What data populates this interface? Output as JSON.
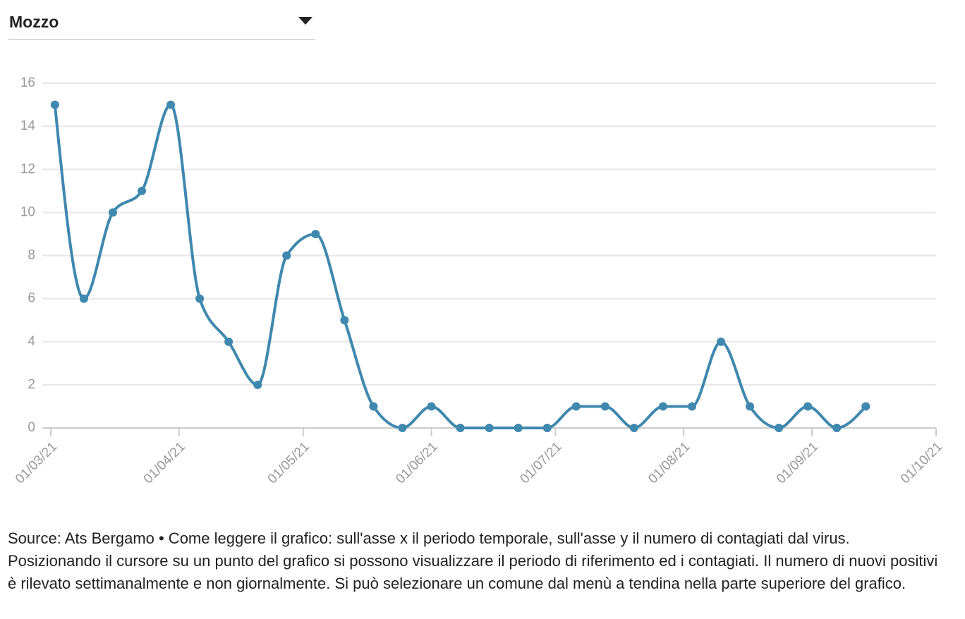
{
  "dropdown": {
    "selected": "Mozzo"
  },
  "chart_data": {
    "type": "line",
    "x": [
      "2021-03-02",
      "2021-03-09",
      "2021-03-16",
      "2021-03-23",
      "2021-03-30",
      "2021-04-06",
      "2021-04-13",
      "2021-04-20",
      "2021-04-27",
      "2021-05-04",
      "2021-05-11",
      "2021-05-18",
      "2021-05-25",
      "2021-06-01",
      "2021-06-08",
      "2021-06-15",
      "2021-06-22",
      "2021-06-29",
      "2021-07-06",
      "2021-07-13",
      "2021-07-20",
      "2021-07-27",
      "2021-08-03",
      "2021-08-10",
      "2021-08-17",
      "2021-08-24",
      "2021-08-31",
      "2021-09-07",
      "2021-09-14"
    ],
    "series": [
      {
        "name": "Mozzo",
        "color": "#3f88ae",
        "values": [
          15,
          6,
          10,
          11,
          15,
          6,
          4,
          2,
          8,
          9,
          5,
          1,
          0,
          1,
          0,
          0,
          0,
          0,
          1,
          1,
          0,
          1,
          1,
          4,
          1,
          0,
          1,
          0,
          1
        ]
      }
    ],
    "xlim": [
      "2021-03-01",
      "2021-10-01"
    ],
    "xticks": [
      {
        "value": "2021-03-01",
        "label": "01/03/21"
      },
      {
        "value": "2021-04-01",
        "label": "01/04/21"
      },
      {
        "value": "2021-05-01",
        "label": "01/05/21"
      },
      {
        "value": "2021-06-01",
        "label": "01/06/21"
      },
      {
        "value": "2021-07-01",
        "label": "01/07/21"
      },
      {
        "value": "2021-08-01",
        "label": "01/08/21"
      },
      {
        "value": "2021-09-01",
        "label": "01/09/21"
      },
      {
        "value": "2021-10-01",
        "label": "01/10/21"
      }
    ],
    "ylim": [
      0,
      16
    ],
    "yticks": [
      0,
      2,
      4,
      6,
      8,
      10,
      12,
      14,
      16
    ],
    "grid": true
  },
  "source": "Source: Ats Bergamo • Come leggere il grafico: sull'asse x il periodo temporale, sull'asse y il numero di contagiati dal virus. Posizionando il cursore su un punto del grafico si possono visualizzare il periodo di riferimento ed i contagiati. Il numero di nuovi positivi è rilevato settimanalmente e non giornalmente. Si può selezionare un comune dal menù a tendina nella parte superiore del grafico."
}
